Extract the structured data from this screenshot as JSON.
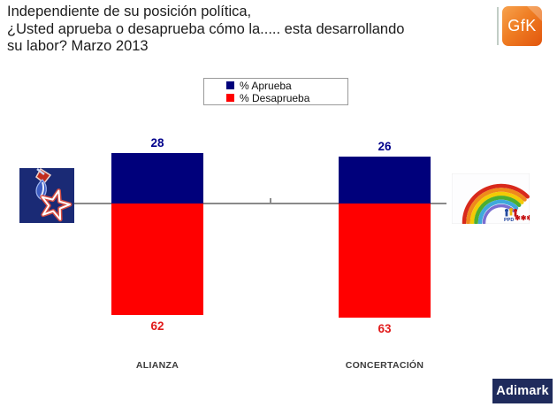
{
  "title": {
    "line1": "Independiente de su posición política,",
    "line2": "¿Usted aprueba o desaprueba cómo la..... esta desarrollando",
    "line3": "su labor? Marzo 2013"
  },
  "logos": {
    "gfk": "GfK",
    "adimark": "Adimark",
    "ppd": "PPD",
    "concertacion_marks": "✱✱✱"
  },
  "chart_data": {
    "type": "bar",
    "subtype": "diverging-stacked-from-baseline",
    "title": "Independiente de su posición política, ¿Usted aprueba o desaprueba cómo la..... esta desarrollando su labor? Marzo 2013",
    "categories": [
      "ALIANZA",
      "CONCERTACIÓN"
    ],
    "series": [
      {
        "name": "% Aprueba",
        "color": "#00007B",
        "direction": "above-baseline",
        "values": [
          28,
          26
        ]
      },
      {
        "name": "% Desaprueba",
        "color": "#FF0000",
        "direction": "below-baseline",
        "values": [
          62,
          63
        ]
      }
    ],
    "value_label_colors": {
      "approve": "#00008B",
      "disapprove": "#E11B1B"
    },
    "baseline": 0,
    "unit": "%",
    "grid": false,
    "legend_position": "top-center",
    "axis_line_color": "#8a8a8a"
  }
}
